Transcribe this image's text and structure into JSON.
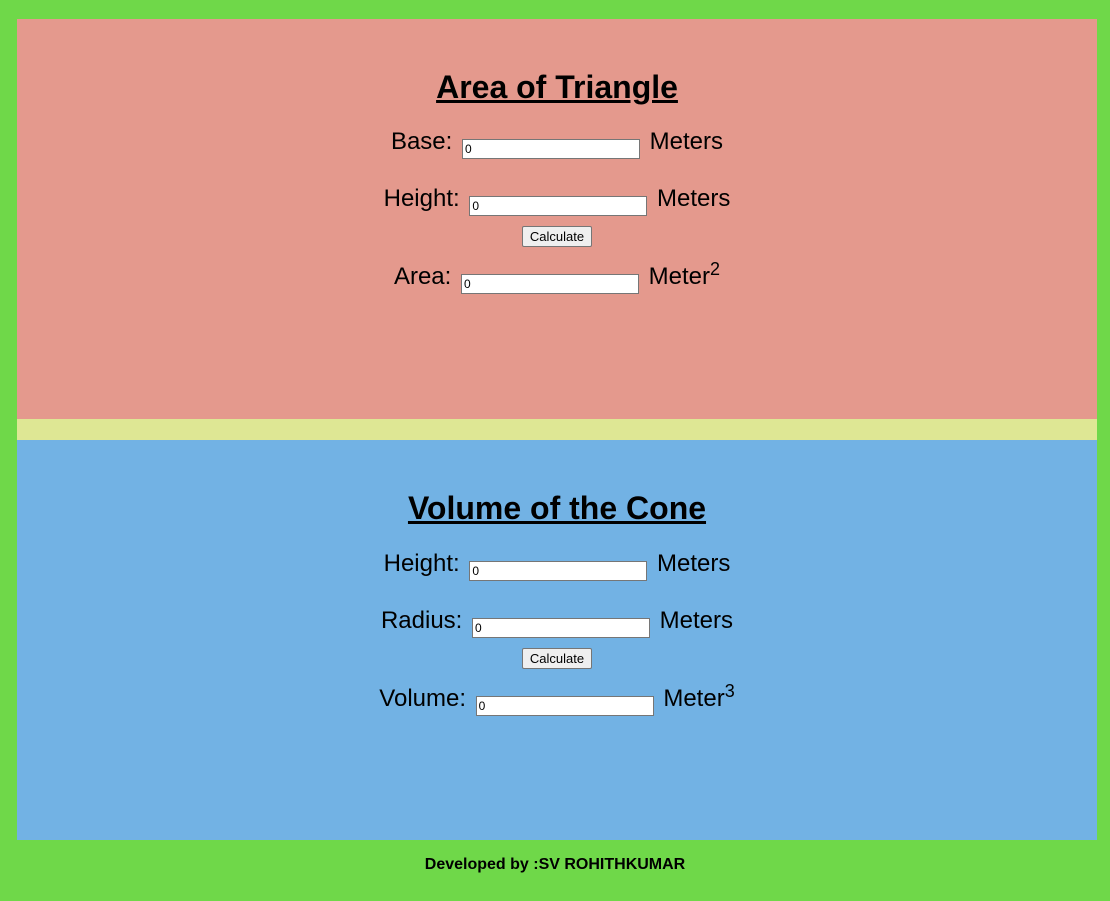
{
  "colors": {
    "page_background": "#6fd849",
    "triangle_panel": "#e4998d",
    "divider": "#dee794",
    "cone_panel": "#72b2e4"
  },
  "triangle": {
    "title": "Area of Triangle",
    "base_label": "Base:",
    "base_value": "0",
    "base_unit": "Meters",
    "height_label": "Height:",
    "height_value": "0",
    "height_unit": "Meters",
    "calculate_label": "Calculate",
    "area_label": "Area:",
    "area_value": "0",
    "area_unit": "Meter",
    "area_unit_exponent": "2"
  },
  "cone": {
    "title": "Volume of the Cone",
    "height_label": "Height:",
    "height_value": "0",
    "height_unit": "Meters",
    "radius_label": "Radius:",
    "radius_value": "0",
    "radius_unit": "Meters",
    "calculate_label": "Calculate",
    "volume_label": "Volume:",
    "volume_value": "0",
    "volume_unit": "Meter",
    "volume_unit_exponent": "3"
  },
  "footer": {
    "text": "Developed by :SV ROHITHKUMAR"
  }
}
